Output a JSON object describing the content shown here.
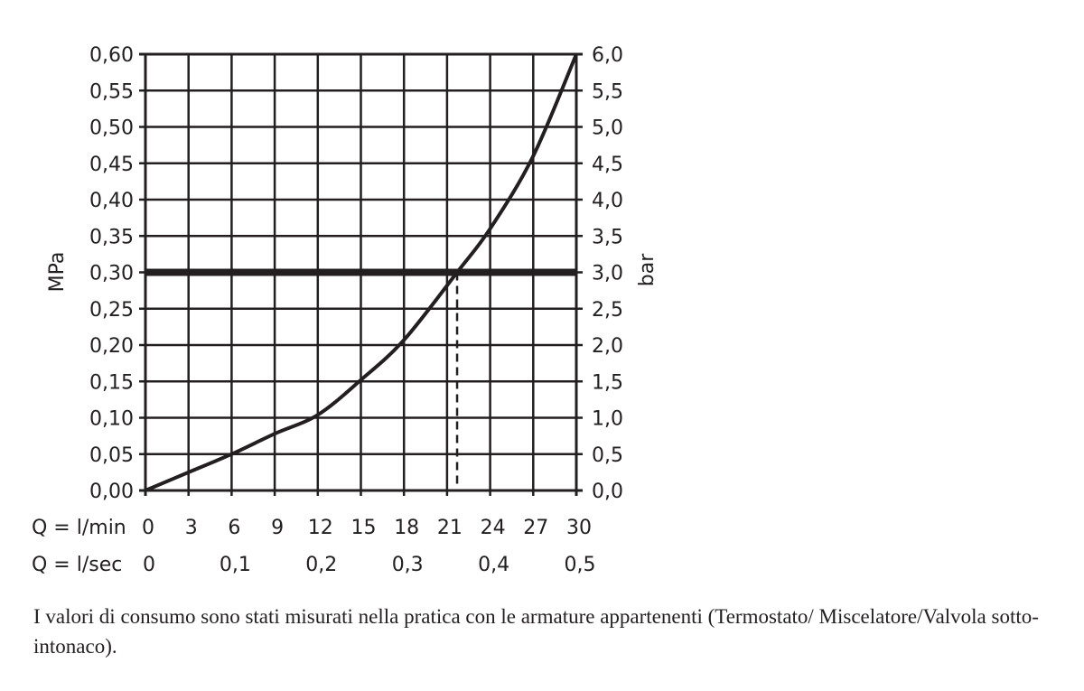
{
  "chart_data": {
    "type": "line",
    "title": "",
    "xlabel": "Q = l/min",
    "xlabel_secondary": "Q = l/sec",
    "ylabel": "MPa",
    "ylabel_right": "bar",
    "xlim": [
      0,
      30
    ],
    "ylim": [
      0,
      0.6
    ],
    "grid": true,
    "x_ticks": [
      "0",
      "3",
      "6",
      "9",
      "12",
      "15",
      "18",
      "21",
      "24",
      "27",
      "30"
    ],
    "x_ticks_secondary": [
      {
        "at": 0,
        "label": "0"
      },
      {
        "at": 6,
        "label": "0,1"
      },
      {
        "at": 12,
        "label": "0,2"
      },
      {
        "at": 18,
        "label": "0,3"
      },
      {
        "at": 24,
        "label": "0,4"
      },
      {
        "at": 30,
        "label": "0,5"
      }
    ],
    "y_ticks_left": [
      "0,00",
      "0,05",
      "0,10",
      "0,15",
      "0,20",
      "0,25",
      "0,30",
      "0,35",
      "0,40",
      "0,45",
      "0,50",
      "0,55",
      "0,60"
    ],
    "y_ticks_right": [
      "0,0",
      "0,5",
      "1,0",
      "1,5",
      "2,0",
      "2,5",
      "3,0",
      "3,5",
      "4,0",
      "4,5",
      "5,0",
      "5,5",
      "6,0"
    ],
    "series": [
      {
        "x": [
          0,
          3,
          6,
          9,
          12,
          15,
          18,
          21.7,
          24,
          27,
          30
        ],
        "y": [
          0,
          0.025,
          0.05,
          0.078,
          0.104,
          0.152,
          0.207,
          0.3,
          0.36,
          0.46,
          0.6
        ]
      }
    ],
    "reference_line_y": 0.3,
    "reference_dashed_x": 21.7,
    "color": "#231f20"
  },
  "caption": {
    "text": "I valori di consumo sono stati misurati nella pratica con le armature appartenenti (Termostato/ Miscelatore/Valvola sotto-intonaco)."
  }
}
